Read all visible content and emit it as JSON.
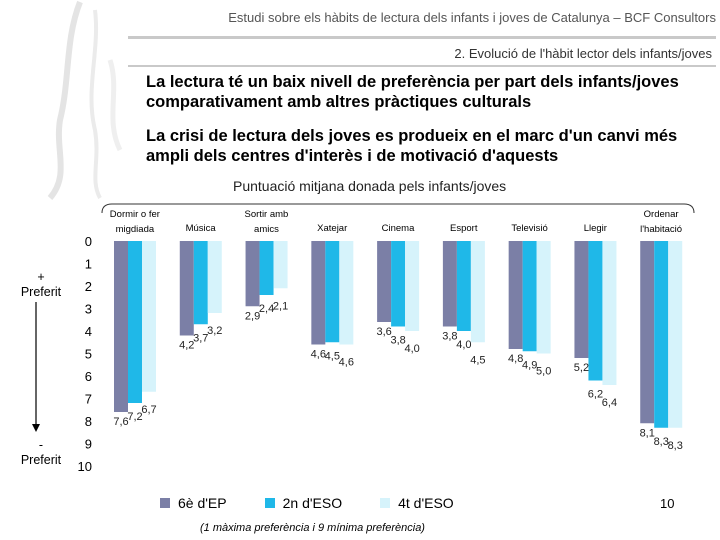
{
  "header": {
    "top_title": "Estudi sobre els hàbits de lectura dels infants i joves de Catalunya – BCF Consultors",
    "section_title": "2. Evolució de l'hàbit lector dels infants/joves"
  },
  "bullets": [
    "La lectura té un baix nivell de preferència per part dels infants/joves comparativament amb altres pràctiques culturals",
    "La crisi de lectura dels joves es produeix en el marc d'un canvi més ampli dels centres d'interès i de motivació d'aquests"
  ],
  "side_labels": {
    "top_sign": "+",
    "top_word": "Preferit",
    "bottom_sign": "-",
    "bottom_word": "Preferit"
  },
  "page_number": "10",
  "footnote": "(1 màxima preferència i 9 mínima preferència)",
  "chart_data": {
    "type": "bar",
    "title": "Puntuació mitjana donada pels infants/joves",
    "categories": [
      [
        "Dormir o fer",
        "migdiada"
      ],
      [
        "Música"
      ],
      [
        "Sortir amb",
        "amics"
      ],
      [
        "Xatejar"
      ],
      [
        "Cinema"
      ],
      [
        "Esport"
      ],
      [
        "Televisió"
      ],
      [
        "Llegir"
      ],
      [
        "Ordenar",
        "l'habitació"
      ]
    ],
    "series": [
      {
        "name": "6è d'EP",
        "color": "#7b7fa6",
        "values": [
          7.6,
          4.2,
          2.9,
          4.6,
          3.6,
          3.8,
          4.8,
          5.2,
          8.1
        ],
        "labels": [
          "7,6",
          "4,2",
          "2,9",
          "4,6",
          "3,6",
          "3,8",
          "4,8",
          "5,2",
          "8,1"
        ]
      },
      {
        "name": "2n d'ESO",
        "color": "#1fb8e8",
        "values": [
          7.2,
          3.7,
          2.4,
          4.5,
          3.8,
          4.0,
          4.9,
          6.2,
          8.3
        ],
        "labels": [
          "7,2",
          "3,7",
          "2,4",
          "4,5",
          "3,8",
          "4,0",
          "4,9",
          "6,2",
          "8,3"
        ]
      },
      {
        "name": "4t d'ESO",
        "color": "#d6f3fb",
        "values": [
          6.7,
          3.2,
          2.1,
          4.6,
          4.0,
          4.5,
          5.0,
          6.4,
          8.3
        ],
        "labels": [
          "6,7",
          "3,2",
          "2,1",
          "4,6",
          "4,0",
          "4,5",
          "5,0",
          "6,4",
          "8,3"
        ]
      }
    ],
    "ylim": [
      0,
      10
    ],
    "yticks": [
      0,
      1,
      2,
      3,
      4,
      5,
      6,
      7,
      8,
      9,
      10
    ],
    "y_inverted": true,
    "legend_position": "bottom"
  }
}
